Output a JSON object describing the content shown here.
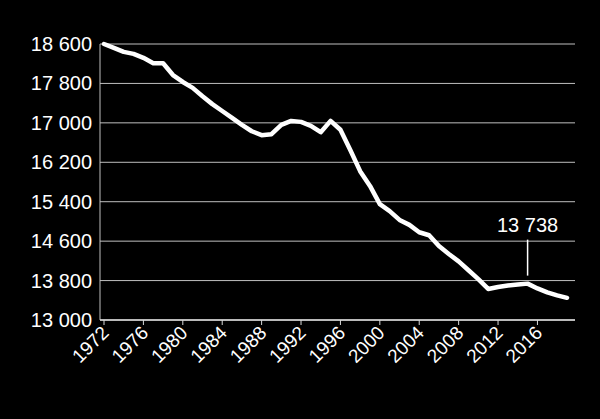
{
  "chart_data": {
    "type": "line",
    "x": [
      1972,
      1973,
      1974,
      1975,
      1976,
      1977,
      1978,
      1979,
      1980,
      1981,
      1982,
      1983,
      1984,
      1985,
      1986,
      1987,
      1988,
      1989,
      1990,
      1991,
      1992,
      1993,
      1994,
      1995,
      1996,
      1997,
      1998,
      1999,
      2000,
      2001,
      2002,
      2003,
      2004,
      2005,
      2006,
      2007,
      2008,
      2009,
      2010,
      2011,
      2012,
      2013,
      2014,
      2015,
      2016,
      2017,
      2018,
      2019
    ],
    "values": [
      18600,
      18520,
      18440,
      18400,
      18320,
      18210,
      18210,
      17970,
      17830,
      17710,
      17540,
      17380,
      17240,
      17100,
      16960,
      16830,
      16750,
      16770,
      16960,
      17040,
      17020,
      16940,
      16810,
      17040,
      16860,
      16450,
      16020,
      15720,
      15350,
      15210,
      15030,
      14930,
      14780,
      14720,
      14500,
      14340,
      14190,
      14010,
      13830,
      13630,
      13670,
      13700,
      13720,
      13738,
      13640,
      13560,
      13500,
      13450
    ],
    "color": "#ffffff",
    "xlim": [
      1972,
      2019
    ],
    "xticks": [
      1972,
      1976,
      1980,
      1984,
      1988,
      1992,
      1996,
      2000,
      2004,
      2008,
      2012,
      2016
    ],
    "ylim": [
      13000,
      18600
    ],
    "yticks": [
      {
        "value": 13000,
        "label": "13 000"
      },
      {
        "value": 13800,
        "label": "13 800"
      },
      {
        "value": 14600,
        "label": "14 600"
      },
      {
        "value": 15400,
        "label": "15 400"
      },
      {
        "value": 16200,
        "label": "16 200"
      },
      {
        "value": 17000,
        "label": "17 000"
      },
      {
        "value": 17800,
        "label": "17 800"
      },
      {
        "value": 18600,
        "label": "18 600"
      }
    ],
    "grid": true,
    "annotations": [
      {
        "text": "13 738",
        "x": 2015,
        "value": 13738
      }
    ]
  }
}
